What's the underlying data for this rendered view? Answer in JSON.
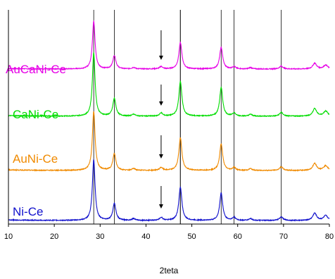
{
  "chart_data": {
    "type": "line",
    "title": "",
    "xlabel": "2teta",
    "ylabel": "",
    "xlim": [
      10,
      80
    ],
    "xticks": [
      "10",
      "20",
      "30",
      "40",
      "50",
      "60",
      "70",
      "80"
    ],
    "y_axis_ticks_shown": false,
    "grid": false,
    "legend": "labels placed left of each curve",
    "reference_lines_x": [
      28.6,
      33.1,
      47.5,
      56.4,
      59.2,
      69.5
    ],
    "arrow_marks_x": [
      43.3
    ],
    "peaks": [
      {
        "x": 28.6,
        "rel": 1.0,
        "w": 0.35
      },
      {
        "x": 33.1,
        "rel": 0.28,
        "w": 0.4
      },
      {
        "x": 37.3,
        "rel": 0.03,
        "w": 0.4
      },
      {
        "x": 43.3,
        "rel": 0.05,
        "w": 0.4
      },
      {
        "x": 47.5,
        "rel": 0.55,
        "w": 0.4
      },
      {
        "x": 56.4,
        "rel": 0.45,
        "w": 0.4
      },
      {
        "x": 59.2,
        "rel": 0.05,
        "w": 0.4
      },
      {
        "x": 62.8,
        "rel": 0.03,
        "w": 0.4
      },
      {
        "x": 69.5,
        "rel": 0.06,
        "w": 0.45
      },
      {
        "x": 76.8,
        "rel": 0.12,
        "w": 0.5
      },
      {
        "x": 79.2,
        "rel": 0.08,
        "w": 0.55
      }
    ],
    "series": [
      {
        "name": "AuCaNi-Ce",
        "color": "#e600e6",
        "peak_scale": 0.75,
        "baseline_offset": 3
      },
      {
        "name": "CaNi-Ce",
        "color": "#00dd00",
        "peak_scale": 1.0,
        "baseline_offset": 2
      },
      {
        "name": "AuNi-Ce",
        "color": "#f08a00",
        "peak_scale": 0.9,
        "baseline_offset": 1
      },
      {
        "name": "Ni-Ce",
        "color": "#1010cc",
        "peak_scale": 0.95,
        "baseline_offset": 0
      }
    ]
  }
}
